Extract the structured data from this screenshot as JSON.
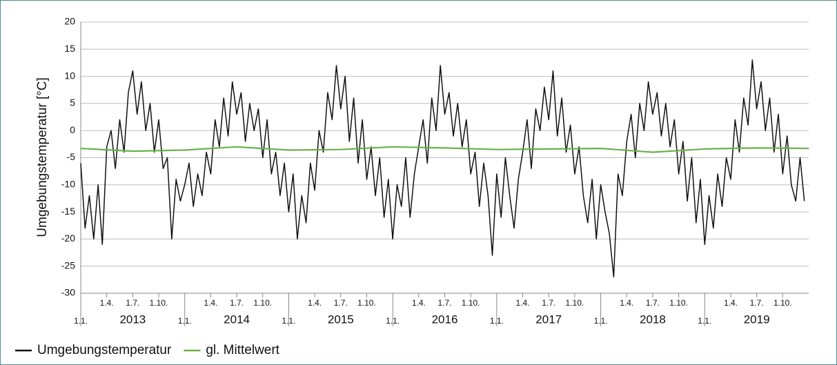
{
  "chart_data": {
    "type": "line",
    "ylabel": "Umgebungstemperatur [°C]",
    "xlim": [
      2013,
      2020
    ],
    "ylim": [
      -30,
      20
    ],
    "yticks": [
      -30,
      -25,
      -20,
      -15,
      -10,
      -5,
      0,
      5,
      10,
      15,
      20
    ],
    "grid": true,
    "xticks": [
      {
        "value": 2013.25,
        "label": "1.4."
      },
      {
        "value": 2013.5,
        "label": "1.7."
      },
      {
        "value": 2013.75,
        "label": "1.10."
      },
      {
        "value": 2014.25,
        "label": "1.4."
      },
      {
        "value": 2014.5,
        "label": "1.7."
      },
      {
        "value": 2014.75,
        "label": "1.10."
      },
      {
        "value": 2015.25,
        "label": "1.4."
      },
      {
        "value": 2015.5,
        "label": "1.7."
      },
      {
        "value": 2015.75,
        "label": "1.10."
      },
      {
        "value": 2016.25,
        "label": "1.4."
      },
      {
        "value": 2016.5,
        "label": "1.7."
      },
      {
        "value": 2016.75,
        "label": "1.10."
      },
      {
        "value": 2017.25,
        "label": "1.4."
      },
      {
        "value": 2017.5,
        "label": "1.7."
      },
      {
        "value": 2017.75,
        "label": "1.10."
      },
      {
        "value": 2018.25,
        "label": "1.4."
      },
      {
        "value": 2018.5,
        "label": "1.7."
      },
      {
        "value": 2018.75,
        "label": "1.10."
      },
      {
        "value": 2019.25,
        "label": "1.4."
      },
      {
        "value": 2019.5,
        "label": "1.7."
      },
      {
        "value": 2019.75,
        "label": "1.10."
      }
    ],
    "xticks_year": [
      {
        "value": 2013,
        "label": "1.1."
      },
      {
        "value": 2014,
        "label": "1.1."
      },
      {
        "value": 2015,
        "label": "1.1."
      },
      {
        "value": 2016,
        "label": "1.1."
      },
      {
        "value": 2017,
        "label": "1.1."
      },
      {
        "value": 2018,
        "label": "1.1."
      },
      {
        "value": 2019,
        "label": "1.1."
      }
    ],
    "year_labels": [
      "2013",
      "2014",
      "2015",
      "2016",
      "2017",
      "2018",
      "2019"
    ],
    "series": [
      {
        "name": "Umgebungstemperatur",
        "color": "#111111",
        "x": [
          2013,
          2013.042,
          2013.083,
          2013.125,
          2013.167,
          2013.208,
          2013.25,
          2013.292,
          2013.333,
          2013.375,
          2013.417,
          2013.458,
          2013.5,
          2013.542,
          2013.583,
          2013.625,
          2013.667,
          2013.708,
          2013.75,
          2013.792,
          2013.833,
          2013.875,
          2013.917,
          2013.958,
          2014,
          2014.042,
          2014.083,
          2014.125,
          2014.167,
          2014.208,
          2014.25,
          2014.292,
          2014.333,
          2014.375,
          2014.417,
          2014.458,
          2014.5,
          2014.542,
          2014.583,
          2014.625,
          2014.667,
          2014.708,
          2014.75,
          2014.792,
          2014.833,
          2014.875,
          2014.917,
          2014.958,
          2015,
          2015.042,
          2015.083,
          2015.125,
          2015.167,
          2015.208,
          2015.25,
          2015.292,
          2015.333,
          2015.375,
          2015.417,
          2015.458,
          2015.5,
          2015.542,
          2015.583,
          2015.625,
          2015.667,
          2015.708,
          2015.75,
          2015.792,
          2015.833,
          2015.875,
          2015.917,
          2015.958,
          2016,
          2016.042,
          2016.083,
          2016.125,
          2016.167,
          2016.208,
          2016.25,
          2016.292,
          2016.333,
          2016.375,
          2016.417,
          2016.458,
          2016.5,
          2016.542,
          2016.583,
          2016.625,
          2016.667,
          2016.708,
          2016.75,
          2016.792,
          2016.833,
          2016.875,
          2016.917,
          2016.958,
          2017,
          2017.042,
          2017.083,
          2017.125,
          2017.167,
          2017.208,
          2017.25,
          2017.292,
          2017.333,
          2017.375,
          2017.417,
          2017.458,
          2017.5,
          2017.542,
          2017.583,
          2017.625,
          2017.667,
          2017.708,
          2017.75,
          2017.792,
          2017.833,
          2017.875,
          2017.917,
          2017.958,
          2018,
          2018.042,
          2018.083,
          2018.125,
          2018.167,
          2018.208,
          2018.25,
          2018.292,
          2018.333,
          2018.375,
          2018.417,
          2018.458,
          2018.5,
          2018.542,
          2018.583,
          2018.625,
          2018.667,
          2018.708,
          2018.75,
          2018.792,
          2018.833,
          2018.875,
          2018.917,
          2018.958,
          2019,
          2019.042,
          2019.083,
          2019.125,
          2019.167,
          2019.208,
          2019.25,
          2019.292,
          2019.333,
          2019.375,
          2019.417,
          2019.458,
          2019.5,
          2019.542,
          2019.583,
          2019.625,
          2019.667,
          2019.708,
          2019.75,
          2019.792,
          2019.833,
          2019.875,
          2019.917,
          2019.958
        ],
        "values": [
          -6,
          -18,
          -12,
          -20,
          -10,
          -21,
          -3,
          0,
          -7,
          2,
          -4,
          7,
          11,
          3,
          9,
          0,
          5,
          -4,
          2,
          -7,
          -5,
          -20,
          -9,
          -13,
          -10,
          -6,
          -14,
          -8,
          -12,
          -4,
          -8,
          2,
          -3,
          6,
          -1,
          9,
          3,
          7,
          -2,
          5,
          0,
          4,
          -5,
          2,
          -8,
          -4,
          -12,
          -6,
          -15,
          -8,
          -20,
          -12,
          -17,
          -6,
          -11,
          0,
          -4,
          7,
          2,
          12,
          4,
          10,
          -2,
          6,
          -6,
          2,
          -9,
          -3,
          -12,
          -5,
          -16,
          -9,
          -20,
          -10,
          -14,
          -5,
          -16,
          -8,
          -3,
          2,
          -6,
          6,
          0,
          12,
          3,
          7,
          -1,
          5,
          -3,
          2,
          -8,
          -4,
          -14,
          -6,
          -12,
          -23,
          -8,
          -16,
          -5,
          -12,
          -18,
          -9,
          -4,
          2,
          -7,
          4,
          0,
          8,
          2,
          11,
          -1,
          6,
          -4,
          1,
          -8,
          -3,
          -12,
          -17,
          -9,
          -20,
          -10,
          -15,
          -19,
          -27,
          -8,
          -12,
          -2,
          3,
          -5,
          5,
          0,
          9,
          3,
          7,
          -1,
          5,
          -3,
          2,
          -8,
          -2,
          -13,
          -5,
          -17,
          -9,
          -21,
          -12,
          -18,
          -8,
          -14,
          -5,
          -9,
          2,
          -4,
          6,
          1,
          13,
          4,
          9,
          0,
          6,
          -4,
          3,
          -8,
          -1,
          -10,
          -13,
          -5,
          -13
        ]
      },
      {
        "name": "gl. Mittelwert",
        "color": "#6ab04c",
        "x": [
          2013,
          2013.5,
          2014,
          2014.5,
          2015,
          2015.5,
          2016,
          2016.5,
          2017,
          2017.5,
          2018,
          2018.5,
          2019,
          2019.5,
          2020
        ],
        "values": [
          -3.3,
          -3.8,
          -3.6,
          -3.0,
          -3.6,
          -3.5,
          -3.0,
          -3.2,
          -3.5,
          -3.4,
          -3.3,
          -4.0,
          -3.4,
          -3.2,
          -3.3
        ]
      }
    ]
  }
}
